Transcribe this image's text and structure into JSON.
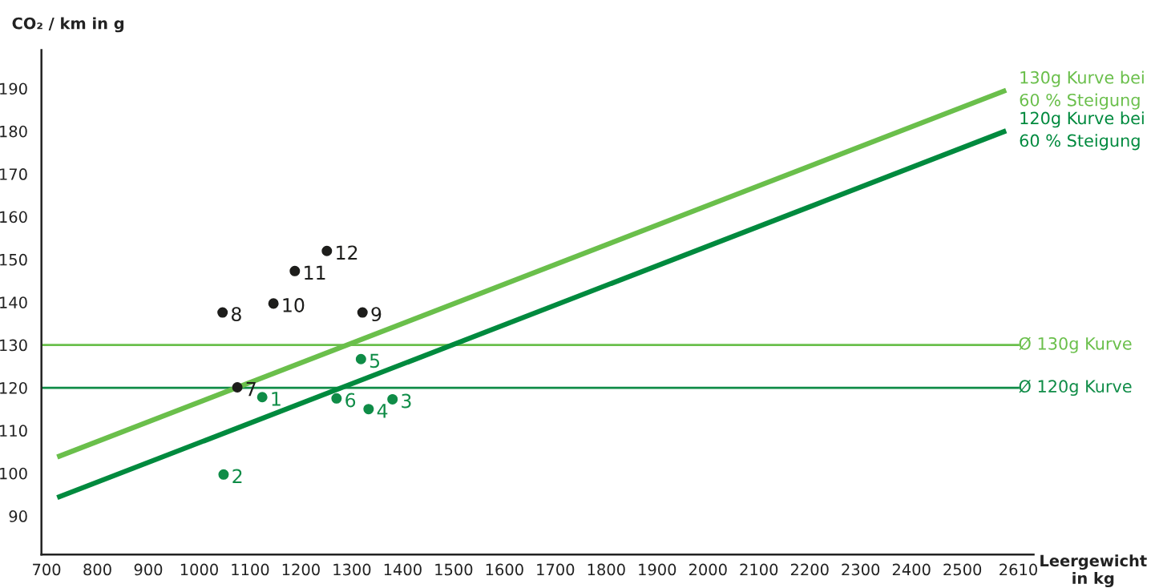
{
  "chart_data": {
    "type": "scatter",
    "xlabel": "Leergewicht\nin kg",
    "ylabel": "CO₂ / km in g",
    "xlim": [
      690,
      2640
    ],
    "ylim": [
      81,
      199
    ],
    "xticks": [
      700,
      800,
      900,
      1000,
      1100,
      1200,
      1300,
      1400,
      1500,
      1600,
      1700,
      1800,
      1900,
      2000,
      2100,
      2200,
      2300,
      2400,
      2500,
      2610
    ],
    "yticks": [
      90,
      100,
      110,
      120,
      130,
      140,
      150,
      160,
      170,
      180,
      190
    ],
    "grid": false,
    "legend": false,
    "series": [
      {
        "type": "line",
        "marker": "none",
        "name": "130g Kurve bei\n60 % Steigung",
        "color": "#6abf4b",
        "x": [
          721,
          2586
        ],
        "values": [
          103.8,
          189.6
        ]
      },
      {
        "type": "line",
        "marker": "none",
        "name": "120g Kurve bei\n60 % Steigung",
        "color": "#008a3e",
        "x": [
          721,
          2586
        ],
        "values": [
          94.3,
          180.1
        ]
      },
      {
        "marker": "circle",
        "color": "#0f8c47",
        "x": [
          1124,
          1048,
          1380,
          1333,
          1318,
          1270
        ],
        "values": [
          117.8,
          99.7,
          117.3,
          115,
          126.7,
          117.5
        ]
      },
      {
        "marker": "circle",
        "color": "#1d1d1b",
        "x": [
          1075,
          1046,
          1321,
          1146,
          1188,
          1251
        ],
        "values": [
          120.1,
          137.6,
          137.6,
          139.7,
          147.3,
          152
        ]
      }
    ],
    "annotations": [
      {
        "text": "1",
        "x": 1124,
        "y": 117.8
      },
      {
        "text": "2",
        "x": 1048,
        "y": 99.7
      },
      {
        "text": "3",
        "x": 1380,
        "y": 117.3
      },
      {
        "text": "4",
        "x": 1333,
        "y": 115
      },
      {
        "text": "5",
        "x": 1318,
        "y": 126.7
      },
      {
        "text": "6",
        "x": 1270,
        "y": 117.5
      },
      {
        "text": "7",
        "x": 1075,
        "y": 120.1
      },
      {
        "text": "8",
        "x": 1046,
        "y": 137.6
      },
      {
        "text": "9",
        "x": 1321,
        "y": 137.6
      },
      {
        "text": "10",
        "x": 1146,
        "y": 139.7
      },
      {
        "text": "11",
        "x": 1188,
        "y": 147.3
      },
      {
        "text": "12",
        "x": 1251,
        "y": 152
      }
    ],
    "ref_lines": [
      {
        "axis": "y",
        "value": 130,
        "label": "Ø 130g Kurve",
        "color": "#6abf4b"
      },
      {
        "axis": "y",
        "value": 120,
        "label": "Ø 120g Kurve",
        "color": "#0f8c47"
      }
    ]
  }
}
